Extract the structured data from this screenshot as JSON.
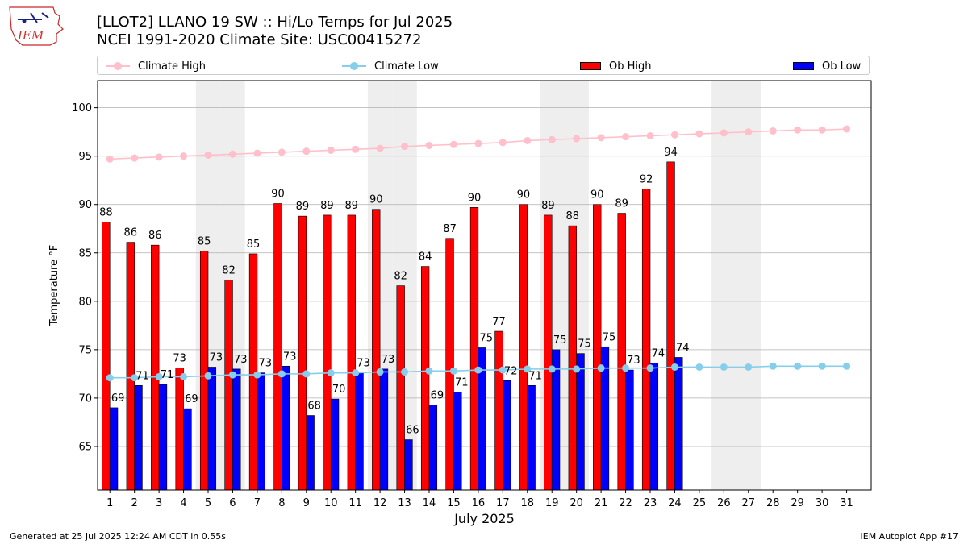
{
  "logo": {
    "text": "IEM",
    "color": "#d32f2f"
  },
  "title": {
    "line1": "[LLOT2] LLANO 19 SW :: Hi/Lo Temps for Jul 2025",
    "line2": "NCEI 1991-2020 Climate Site: USC00415272"
  },
  "legend": {
    "climate_high": "Climate High",
    "climate_low": "Climate Low",
    "ob_high": "Ob High",
    "ob_low": "Ob Low"
  },
  "colors": {
    "ob_high": "#ff0000",
    "ob_low": "#0000ff",
    "climate_high": "#ffc0cb",
    "climate_low": "#87ceeb",
    "weekend_band": "#eeeeee",
    "grid": "#b0b0b0"
  },
  "chart_data": {
    "type": "bar",
    "xlabel": "July 2025",
    "ylabel": "Temperature °F",
    "ylim": [
      60.5,
      102.8
    ],
    "yticks": [
      65,
      70,
      75,
      80,
      85,
      90,
      95,
      100
    ],
    "grid": "horizontal",
    "legend_position": "top",
    "categories": [
      1,
      2,
      3,
      4,
      5,
      6,
      7,
      8,
      9,
      10,
      11,
      12,
      13,
      14,
      15,
      16,
      17,
      18,
      19,
      20,
      21,
      22,
      23,
      24,
      25,
      26,
      27,
      28,
      29,
      30,
      31
    ],
    "weekend_days": [
      5,
      6,
      12,
      13,
      19,
      20,
      26,
      27
    ],
    "series": [
      {
        "name": "Ob High",
        "kind": "bar",
        "values": [
          88.2,
          86.1,
          85.8,
          73.1,
          85.2,
          82.2,
          84.9,
          90.1,
          88.8,
          88.9,
          88.9,
          89.5,
          81.6,
          83.6,
          86.5,
          89.7,
          76.9,
          90.0,
          88.9,
          87.8,
          90.0,
          89.1,
          91.6,
          94.4,
          null,
          null,
          null,
          null,
          null,
          null,
          null
        ],
        "labels": [
          "88",
          "86",
          "86",
          "73",
          "85",
          "82",
          "85",
          "90",
          "89",
          "89",
          "89",
          "90",
          "82",
          "84",
          "87",
          "90",
          "77",
          "90",
          "89",
          "88",
          "90",
          "89",
          "92",
          "94",
          null,
          null,
          null,
          null,
          null,
          null,
          null
        ]
      },
      {
        "name": "Ob Low",
        "kind": "bar",
        "values": [
          69.0,
          71.3,
          71.4,
          68.9,
          73.2,
          73.0,
          72.6,
          73.3,
          68.2,
          69.9,
          72.6,
          73.0,
          65.7,
          69.3,
          70.6,
          75.2,
          71.8,
          71.3,
          75.0,
          74.6,
          75.3,
          72.9,
          73.6,
          74.2,
          null,
          null,
          null,
          null,
          null,
          null,
          null
        ],
        "labels": [
          "69",
          "71",
          "71",
          "69",
          "73",
          "73",
          "73",
          "73",
          "68",
          "70",
          "73",
          "73",
          "66",
          "69",
          "71",
          "75",
          "72",
          "71",
          "75",
          "75",
          "75",
          "73",
          "74",
          "74",
          null,
          null,
          null,
          null,
          null,
          null,
          null
        ]
      },
      {
        "name": "Climate High",
        "kind": "line",
        "values": [
          94.7,
          94.8,
          94.9,
          95.0,
          95.1,
          95.2,
          95.3,
          95.4,
          95.5,
          95.6,
          95.7,
          95.8,
          96.0,
          96.1,
          96.2,
          96.3,
          96.4,
          96.6,
          96.7,
          96.8,
          96.9,
          97.0,
          97.1,
          97.2,
          97.3,
          97.4,
          97.5,
          97.6,
          97.7,
          97.7,
          97.8
        ]
      },
      {
        "name": "Climate Low",
        "kind": "line",
        "values": [
          72.1,
          72.1,
          72.2,
          72.2,
          72.3,
          72.4,
          72.4,
          72.5,
          72.5,
          72.6,
          72.6,
          72.7,
          72.7,
          72.8,
          72.8,
          72.9,
          72.9,
          73.0,
          73.0,
          73.0,
          73.1,
          73.1,
          73.1,
          73.2,
          73.2,
          73.2,
          73.2,
          73.3,
          73.3,
          73.3,
          73.3
        ]
      }
    ]
  },
  "footer": {
    "left": "Generated at 25 Jul 2025 12:24 AM CDT in 0.55s",
    "right": "IEM Autoplot App #17"
  }
}
